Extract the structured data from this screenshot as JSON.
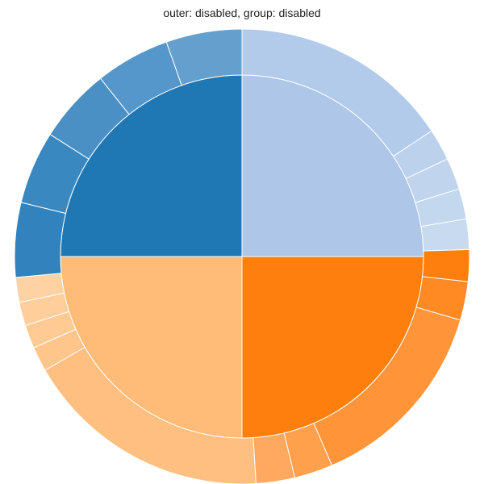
{
  "chart_data": {
    "type": "pie",
    "title": "outer: disabled, group: disabled",
    "inner": [
      {
        "value": 25,
        "color": "#aec7e8"
      },
      {
        "value": 25,
        "color": "#ff7f0e"
      },
      {
        "value": 25,
        "color": "#ffbb78"
      },
      {
        "value": 25,
        "color": "#1f77b4"
      }
    ],
    "outer": [
      {
        "value": 16.0,
        "color": "#b2cbea"
      },
      {
        "value": 2.3,
        "color": "#bbd1ec"
      },
      {
        "value": 2.3,
        "color": "#c0d4ee"
      },
      {
        "value": 2.2,
        "color": "#c3d7ef"
      },
      {
        "value": 2.2,
        "color": "#c8daf0"
      },
      {
        "value": 2.3,
        "color": "#ff7f0e"
      },
      {
        "value": 2.8,
        "color": "#ff8a24"
      },
      {
        "value": 14.3,
        "color": "#ff9538"
      },
      {
        "value": 2.8,
        "color": "#ffa04d"
      },
      {
        "value": 2.8,
        "color": "#ffa85f"
      },
      {
        "value": 18.0,
        "color": "#ffbf80"
      },
      {
        "value": 1.8,
        "color": "#ffc68c"
      },
      {
        "value": 1.7,
        "color": "#ffca94"
      },
      {
        "value": 1.7,
        "color": "#ffce9b"
      },
      {
        "value": 1.8,
        "color": "#ffd2a3"
      },
      {
        "value": 5.4,
        "color": "#3182bd"
      },
      {
        "value": 5.3,
        "color": "#3a88c0"
      },
      {
        "value": 5.4,
        "color": "#4a90c5"
      },
      {
        "value": 5.4,
        "color": "#5597ca"
      },
      {
        "value": 5.5,
        "color": "#649fcd"
      }
    ]
  }
}
